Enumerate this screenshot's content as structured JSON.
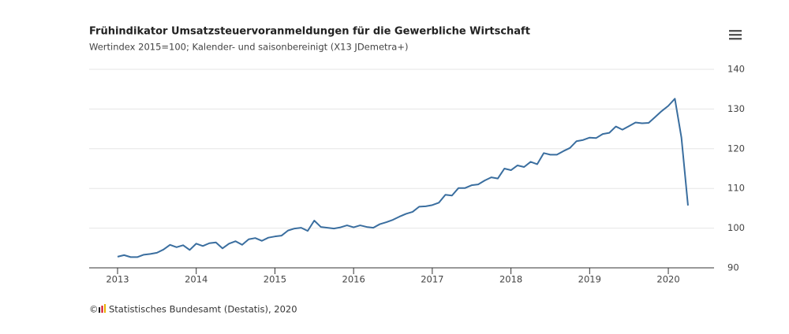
{
  "chart_data": {
    "type": "line",
    "title": "Frühindikator Umsatzsteuervoranmeldungen für die Gewerbliche Wirtschaft",
    "subtitle": "Wertindex 2015=100; Kalender- und saisonbereinigt (X13 JDemetra+)",
    "copyright": "©",
    "source": "Statistisches Bundesamt (Destatis), 2020",
    "categories": [
      "2013",
      null,
      null,
      null,
      null,
      null,
      null,
      null,
      null,
      null,
      null,
      null,
      "2014",
      null,
      null,
      null,
      null,
      null,
      null,
      null,
      null,
      null,
      null,
      null,
      "2015",
      null,
      null,
      null,
      null,
      null,
      null,
      null,
      null,
      null,
      null,
      null,
      "2016",
      null,
      null,
      null,
      null,
      null,
      null,
      null,
      null,
      null,
      null,
      null,
      "2017",
      null,
      null,
      null,
      null,
      null,
      null,
      null,
      null,
      null,
      null,
      null,
      "2018",
      null,
      null,
      null,
      null,
      null,
      null,
      null,
      null,
      null,
      null,
      null,
      "2019",
      null,
      null,
      null,
      null,
      null,
      null,
      null,
      null,
      null,
      null,
      null,
      "2020",
      null,
      null,
      null
    ],
    "series": [
      {
        "color": "#3a6e9f",
        "values": [
          92.8,
          93.2,
          92.7,
          92.7,
          93.3,
          93.5,
          93.8,
          94.6,
          95.8,
          95.2,
          95.7,
          94.5,
          96.1,
          95.5,
          96.2,
          96.4,
          94.9,
          96.1,
          96.7,
          95.8,
          97.2,
          97.5,
          96.8,
          97.6,
          97.9,
          98.1,
          99.4,
          99.9,
          100.1,
          99.3,
          101.9,
          100.3,
          100.1,
          99.9,
          100.2,
          100.7,
          100.2,
          100.7,
          100.3,
          100.1,
          101.0,
          101.5,
          102.1,
          102.9,
          103.6,
          104.1,
          105.4,
          105.5,
          105.8,
          106.4,
          108.4,
          108.2,
          110.1,
          110.1,
          110.8,
          111.0,
          112.0,
          112.8,
          112.5,
          115.0,
          114.6,
          115.8,
          115.4,
          116.7,
          116.1,
          118.9,
          118.5,
          118.5,
          119.4,
          120.2,
          121.9,
          122.2,
          122.8,
          122.7,
          123.7,
          124.0,
          125.6,
          124.8,
          125.7,
          126.6,
          126.4,
          126.5,
          128.0,
          129.5,
          130.8,
          132.6,
          122.8,
          105.7
        ]
      }
    ],
    "ylim": [
      90,
      140
    ],
    "yticks": [
      90,
      100,
      110,
      120,
      130,
      140
    ],
    "grid": true
  }
}
